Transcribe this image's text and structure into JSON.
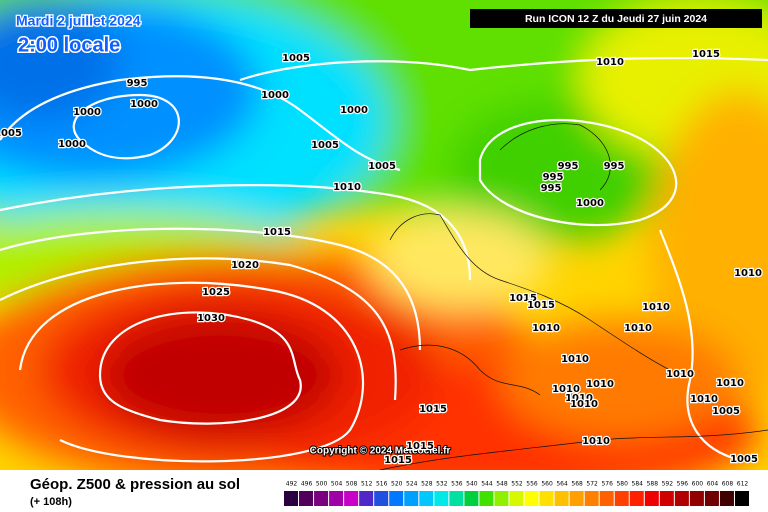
{
  "header": {
    "date": "Mardi 2 juillet 2024",
    "time": "2:00 locale",
    "run": "Run ICON 12 Z du Jeudi 27 juin 2024"
  },
  "footer": {
    "title": "Géop. Z500 & pression au sol",
    "lead": "(+ 108h)",
    "copyright": "Copyright © 2024 Meteociel.fr"
  },
  "isobar_labels": [
    "1005",
    "995",
    "1000",
    "1000",
    "1000",
    "1005",
    "1000",
    "1000",
    "1005",
    "1005",
    "1010",
    "1010",
    "1015",
    "995",
    "995",
    "995",
    "995",
    "1000",
    "1015",
    "1020",
    "1025",
    "1030",
    "1015",
    "1015",
    "1010",
    "1010",
    "1010",
    "1010",
    "1010",
    "1010",
    "1010",
    "1010",
    "1010",
    "1010",
    "1010",
    "1010",
    "1005",
    "1015",
    "1015",
    "1015",
    "1010",
    "1005"
  ],
  "legend": {
    "labels": [
      492,
      496,
      500,
      504,
      508,
      512,
      516,
      520,
      524,
      528,
      532,
      536,
      540,
      544,
      548,
      552,
      556,
      560,
      564,
      568,
      572,
      576,
      580,
      584,
      588,
      592,
      596,
      600,
      604,
      608,
      612
    ],
    "colors": [
      "#2a0040",
      "#50005a",
      "#7a0080",
      "#a000a8",
      "#c800c8",
      "#5028c8",
      "#2050e0",
      "#0078ff",
      "#00a0ff",
      "#00c8ff",
      "#00e8e8",
      "#00e0a0",
      "#00d040",
      "#40e000",
      "#90f000",
      "#d8f800",
      "#ffff00",
      "#ffe000",
      "#ffc000",
      "#ffa000",
      "#ff8000",
      "#ff6000",
      "#ff4000",
      "#ff2000",
      "#f00000",
      "#d00000",
      "#b00000",
      "#900000",
      "#700000",
      "#400000",
      "#000000"
    ]
  }
}
